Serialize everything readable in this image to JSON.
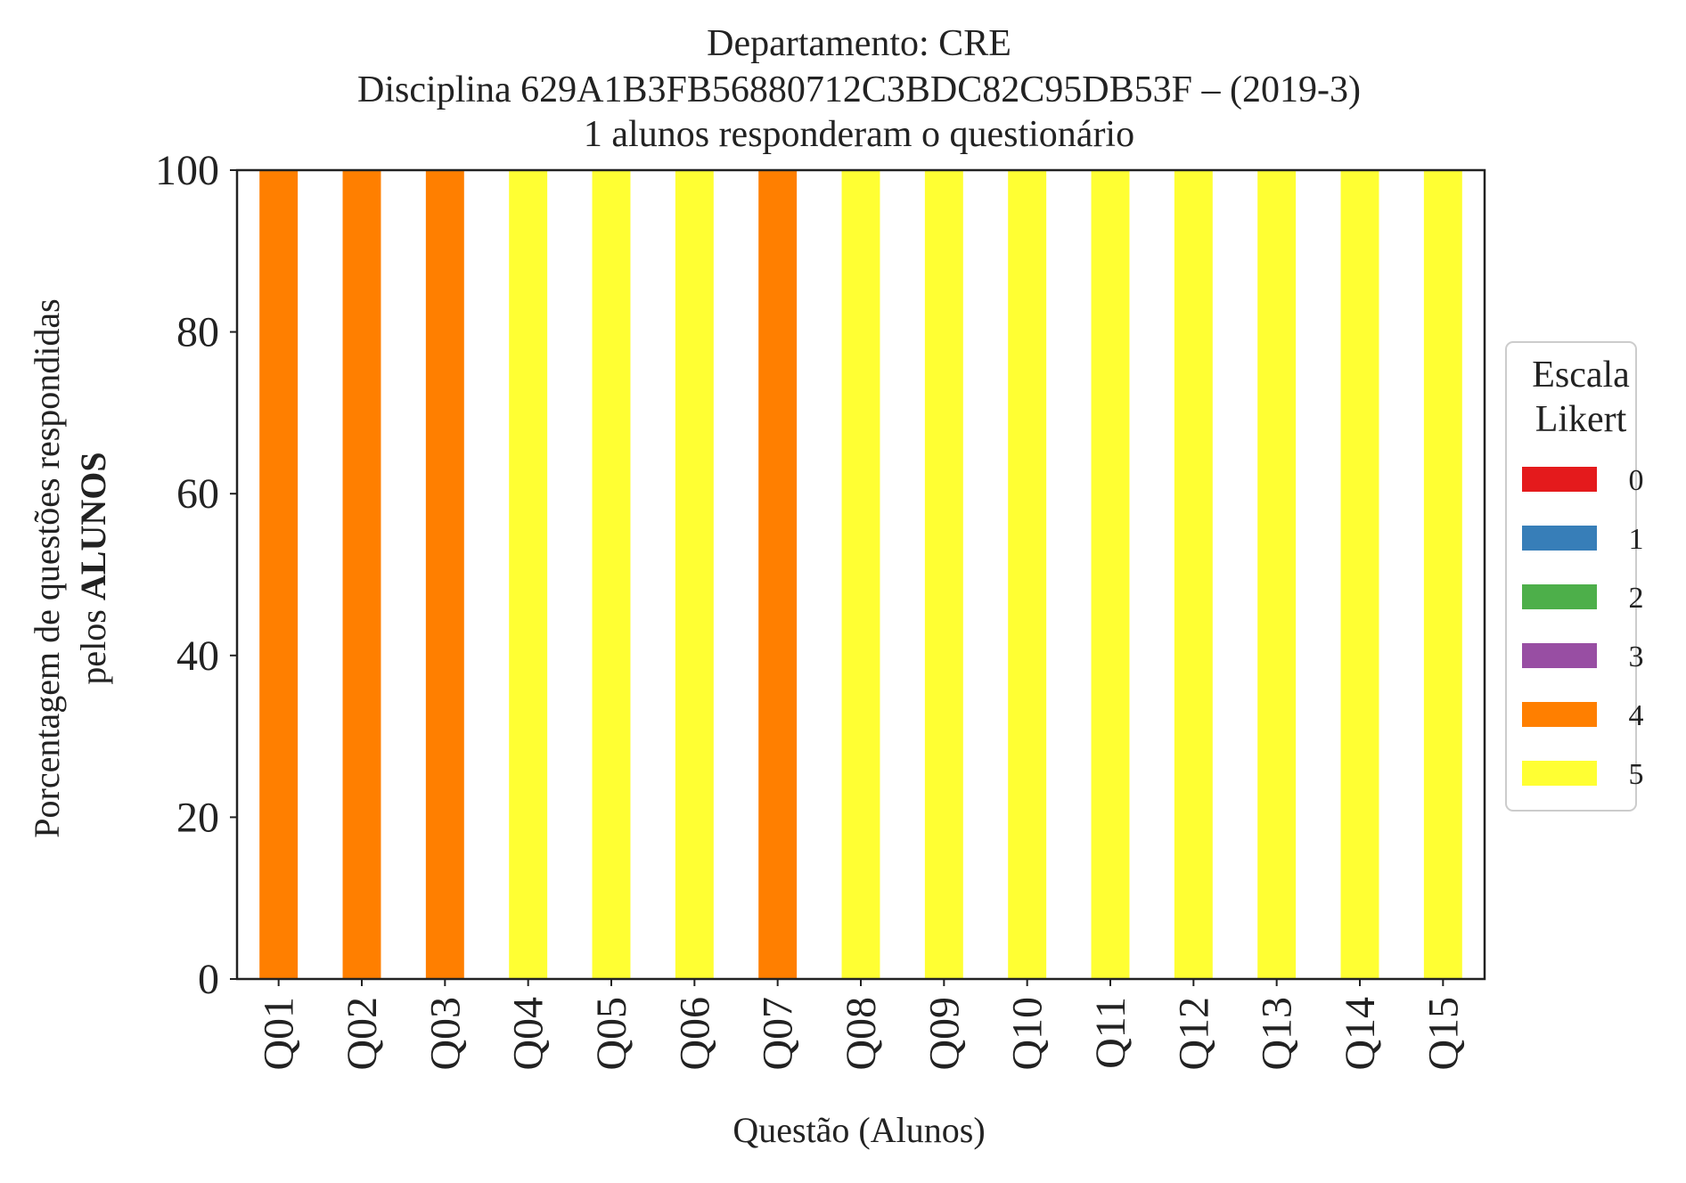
{
  "chart_data": {
    "type": "bar",
    "stacked": true,
    "title_lines": [
      "Departamento: CRE",
      "Disciplina 629A1B3FB56880712C3BDC82C95DB53F – (2019-3)",
      "1 alunos responderam o questionário"
    ],
    "xlabel": "Questão (Alunos)",
    "ylabel_line1": "Porcentagem de questões respondidas",
    "ylabel_line2_prefix": "pelos ",
    "ylabel_line2_bold": "ALUNOS",
    "ylim": [
      0,
      100
    ],
    "yticks": [
      "0",
      "20",
      "40",
      "60",
      "80",
      "100"
    ],
    "grid": false,
    "legend_position": "right",
    "legend_title_lines": [
      "Escala",
      "Likert"
    ],
    "categories": [
      "Q01",
      "Q02",
      "Q03",
      "Q04",
      "Q05",
      "Q06",
      "Q07",
      "Q08",
      "Q09",
      "Q10",
      "Q11",
      "Q12",
      "Q13",
      "Q14",
      "Q15"
    ],
    "series": [
      {
        "name": "0",
        "color": "#e41a1c",
        "values": [
          0,
          0,
          0,
          0,
          0,
          0,
          0,
          0,
          0,
          0,
          0,
          0,
          0,
          0,
          0
        ]
      },
      {
        "name": "1",
        "color": "#377eb8",
        "values": [
          0,
          0,
          0,
          0,
          0,
          0,
          0,
          0,
          0,
          0,
          0,
          0,
          0,
          0,
          0
        ]
      },
      {
        "name": "2",
        "color": "#4daf4a",
        "values": [
          0,
          0,
          0,
          0,
          0,
          0,
          0,
          0,
          0,
          0,
          0,
          0,
          0,
          0,
          0
        ]
      },
      {
        "name": "3",
        "color": "#984ea3",
        "values": [
          0,
          0,
          0,
          0,
          0,
          0,
          0,
          0,
          0,
          0,
          0,
          0,
          0,
          0,
          0
        ]
      },
      {
        "name": "4",
        "color": "#ff7f00",
        "values": [
          100,
          100,
          100,
          0,
          0,
          0,
          100,
          0,
          0,
          0,
          0,
          0,
          0,
          0,
          0
        ]
      },
      {
        "name": "5",
        "color": "#ffff33",
        "values": [
          0,
          0,
          0,
          100,
          100,
          100,
          0,
          100,
          100,
          100,
          100,
          100,
          100,
          100,
          100
        ]
      }
    ]
  }
}
